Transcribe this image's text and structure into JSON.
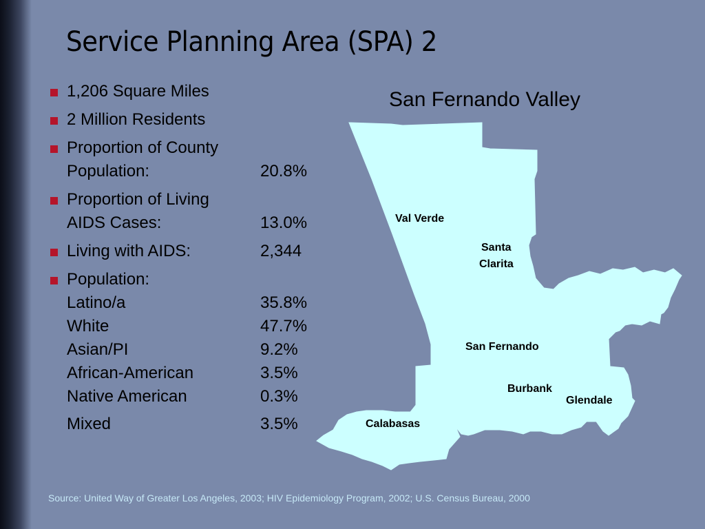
{
  "slide": {
    "title": "Service Planning Area (SPA) 2",
    "bullets": [
      {
        "label": "1,206 Square Miles"
      },
      {
        "label": "2 Million Residents"
      },
      {
        "line1": "Proportion of County",
        "line2_label": "Population:",
        "line2_value": "20.8%"
      },
      {
        "line1": "Proportion of Living",
        "line2_label": "AIDS Cases:",
        "line2_value": "13.0%"
      },
      {
        "label": "Living with AIDS:",
        "value": "2,344"
      },
      {
        "line1": "Population:",
        "rows": [
          {
            "label": "Latino/a",
            "value": "35.8%"
          },
          {
            "label": "White",
            "value": "47.7%"
          },
          {
            "label": "Asian/PI",
            "value": "9.2%"
          },
          {
            "label": "African-American",
            "value": "3.5%"
          },
          {
            "label": "Native American",
            "value": "0.3%"
          },
          {
            "label": "Mixed",
            "value": "3.5%"
          }
        ]
      }
    ],
    "bullet_color": "#b5152a",
    "map": {
      "title": "San Fernando Valley",
      "fill_color": "#ccffff",
      "places": [
        "Val Verde",
        "Santa",
        "Clarita",
        "San Fernando",
        "Burbank",
        "Glendale",
        "Calabasas"
      ]
    },
    "source": "Source: United Way of Greater Los Angeles, 2003; HIV Epidemiology Program, 2002; U.S. Census Bureau, 2000"
  }
}
